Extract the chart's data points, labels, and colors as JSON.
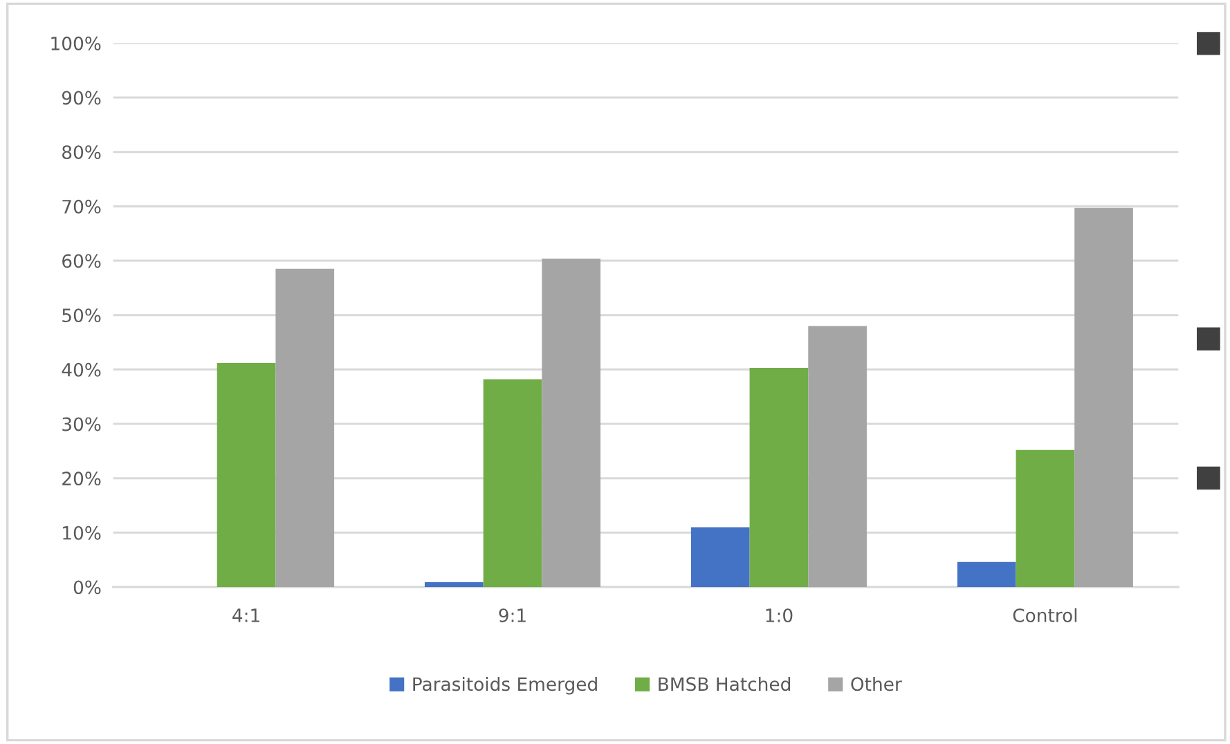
{
  "chart_data": {
    "type": "bar",
    "categories": [
      "4:1",
      "9:1",
      "1:0",
      "Control"
    ],
    "series": [
      {
        "name": "Parasitoids Emerged",
        "color": "#4472c4",
        "values": [
          0,
          0.9,
          11.0,
          4.6
        ]
      },
      {
        "name": "BMSB Hatched",
        "color": "#70ad47",
        "values": [
          41.2,
          38.2,
          40.3,
          25.2
        ]
      },
      {
        "name": "Other",
        "color": "#a5a5a5",
        "values": [
          58.5,
          60.4,
          48.0,
          69.7
        ]
      }
    ],
    "ylim": [
      0,
      100
    ],
    "yticks": [
      {
        "value": 0,
        "label": "0%"
      },
      {
        "value": 10,
        "label": "10%"
      },
      {
        "value": 20,
        "label": "20%"
      },
      {
        "value": 30,
        "label": "30%"
      },
      {
        "value": 40,
        "label": "40%"
      },
      {
        "value": 50,
        "label": "50%"
      },
      {
        "value": 60,
        "label": "60%"
      },
      {
        "value": 70,
        "label": "70%"
      },
      {
        "value": 80,
        "label": "80%"
      },
      {
        "value": 90,
        "label": "90%"
      },
      {
        "value": 100,
        "label": "100%"
      }
    ],
    "grid": "y",
    "legend": "bottom"
  }
}
